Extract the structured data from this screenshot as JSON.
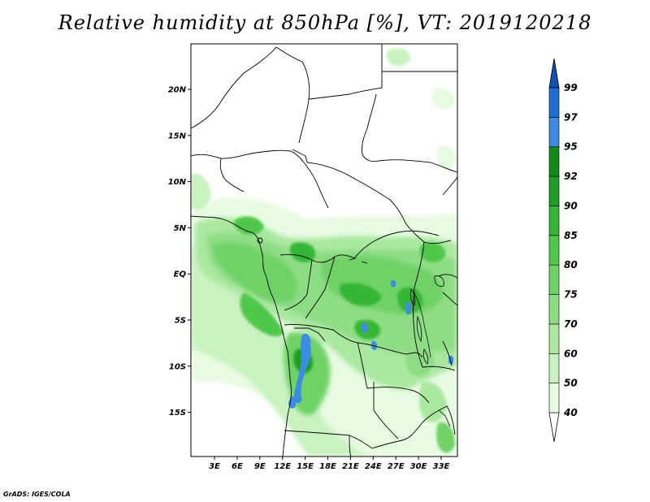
{
  "title": "Relative humidity at 850hPa [%], VT: 2019120218",
  "footer": "GrADS: IGES/COLA",
  "lat_labels": [
    "20N",
    "15N",
    "10N",
    "5N",
    "EQ",
    "5S",
    "10S",
    "15S"
  ],
  "lon_labels": [
    "3E",
    "6E",
    "9E",
    "12E",
    "15E",
    "18E",
    "21E",
    "24E",
    "27E",
    "30E",
    "33E"
  ],
  "colorbar": {
    "levels": [
      "40",
      "50",
      "60",
      "70",
      "75",
      "80",
      "85",
      "90",
      "92",
      "95",
      "97",
      "99"
    ],
    "colors": [
      "#ffffff",
      "#e7fbe1",
      "#c9f2c0",
      "#aae8a0",
      "#8edd85",
      "#6ed266",
      "#4fc74b",
      "#35b636",
      "#1e9e24",
      "#0f8a15",
      "#3c8ce6",
      "#1f6fd4",
      "#1350b0"
    ]
  },
  "map": {
    "projection": "lat-lon",
    "lon_range": [
      0,
      35
    ],
    "lat_range": [
      -20,
      24
    ],
    "variable": "Relative humidity",
    "level": "850hPa",
    "units": "%",
    "valid_time": "2019120218"
  }
}
